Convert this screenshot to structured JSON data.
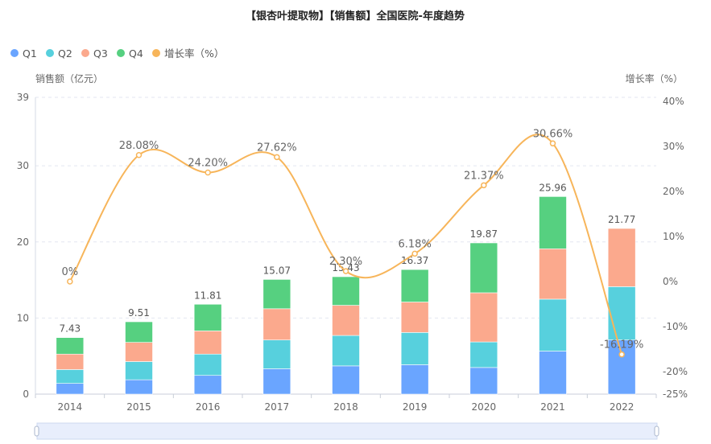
{
  "chart_data": {
    "type": "bar",
    "title": "【银杏叶提取物】【销售额】全国医院-年度趋势",
    "ylabel": "销售额（亿元）",
    "y2label": "增长率（%）",
    "categories": [
      "2014",
      "2015",
      "2016",
      "2017",
      "2018",
      "2019",
      "2020",
      "2021",
      "2022"
    ],
    "ylim": [
      0,
      39
    ],
    "yticks": [
      "0",
      "10",
      "20",
      "30",
      "39"
    ],
    "y2lim": [
      -25,
      40
    ],
    "y2ticks": [
      "-25%",
      "-20%",
      "-10%",
      "0%",
      "10%",
      "20%",
      "30%",
      "40%"
    ],
    "grid": true,
    "legend_position": "top-left",
    "series": [
      {
        "name": "Q1",
        "type": "bar",
        "color": "#6aa5ff",
        "values": [
          1.41,
          1.89,
          2.46,
          3.33,
          3.71,
          3.86,
          3.5,
          5.65,
          7.12
        ]
      },
      {
        "name": "Q2",
        "type": "bar",
        "color": "#57d0dd",
        "values": [
          1.82,
          2.39,
          2.8,
          3.79,
          4.0,
          4.24,
          3.36,
          6.83,
          7.0
        ]
      },
      {
        "name": "Q3",
        "type": "bar",
        "color": "#fba98d",
        "values": [
          2.03,
          2.52,
          3.05,
          4.1,
          3.96,
          4.0,
          6.46,
          6.62,
          7.65
        ]
      },
      {
        "name": "Q4",
        "type": "bar",
        "color": "#56d080",
        "values": [
          2.17,
          2.71,
          3.5,
          3.85,
          3.76,
          4.27,
          6.55,
          6.86,
          null
        ]
      },
      {
        "name": "增长率（%）",
        "type": "line",
        "color": "#f7b55a",
        "axis": "right",
        "values": [
          0,
          28.08,
          24.2,
          27.62,
          2.3,
          6.18,
          21.37,
          30.66,
          -16.19
        ]
      }
    ],
    "totals": [
      7.43,
      9.51,
      11.81,
      15.07,
      15.43,
      16.37,
      19.87,
      25.96,
      21.77
    ],
    "total_labels": [
      "7.43",
      "9.51",
      "11.81",
      "15.07",
      "15.43",
      "16.37",
      "19.87",
      "25.96",
      "21.77"
    ],
    "growth_labels": [
      "0%",
      "28.08%",
      "24.20%",
      "27.62%",
      "2.30%",
      "6.18%",
      "21.37%",
      "30.66%",
      "-16.19%"
    ]
  },
  "data_zoom": {
    "start_percent": 0,
    "end_percent": 100
  }
}
